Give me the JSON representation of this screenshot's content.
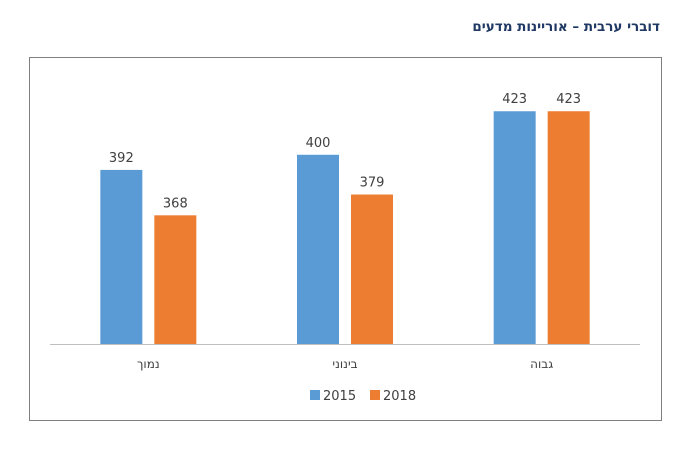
{
  "chart_data": {
    "type": "bar",
    "title": "דוברי ערבית – אוריינות מדעים",
    "categories": [
      "נמוך",
      "בינוני",
      "גבוה"
    ],
    "series": [
      {
        "name": "2015",
        "values": [
          392,
          400,
          423
        ],
        "color": "#5b9bd5"
      },
      {
        "name": "2018",
        "values": [
          368,
          379,
          423
        ],
        "color": "#ed7d31"
      }
    ],
    "ylim": [
      300,
      430
    ],
    "grid": false,
    "legend": "bottom"
  }
}
